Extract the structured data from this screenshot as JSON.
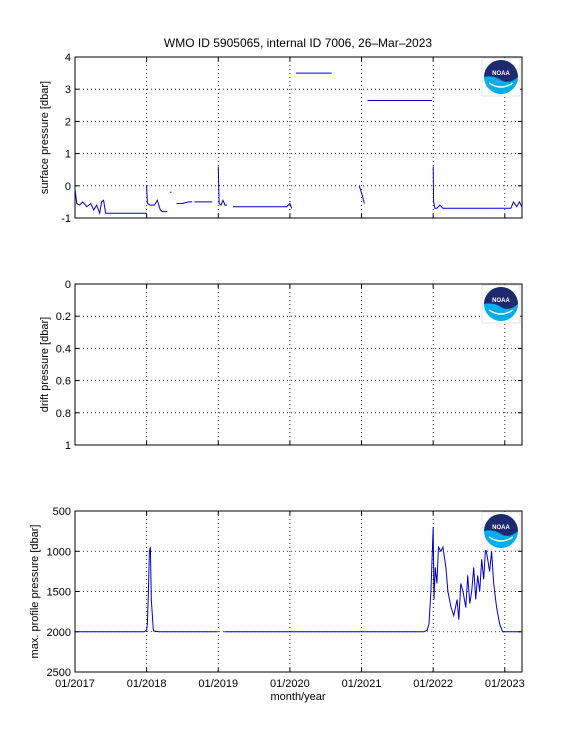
{
  "title": "WMO ID 5905065, internal ID 7006, 26–Mar–2023",
  "xlabel": "month/year",
  "x_ticks": [
    "01/2017",
    "01/2018",
    "01/2019",
    "01/2020",
    "01/2021",
    "01/2022",
    "01/2023"
  ],
  "logo_text": "NOAA",
  "colors": {
    "line": "#0000cc",
    "logo_navy": "#1f2a6e",
    "logo_cyan": "#00aeef"
  },
  "chart_data": [
    {
      "type": "line",
      "ylabel": "surface pressure [dbar]",
      "ylim": [
        -1,
        4
      ],
      "y_reversed": false,
      "y_ticks": [
        "-1",
        "0",
        "1",
        "2",
        "3",
        "4"
      ],
      "xlim": [
        "2017-01",
        "2023-04"
      ],
      "grid": true,
      "segments": [
        {
          "x": [
            "2017-01-01",
            "2017-01-10",
            "2017-01-25",
            "2017-02-10",
            "2017-03-01",
            "2017-03-20",
            "2017-04-05",
            "2017-04-20",
            "2017-05-05",
            "2017-05-15",
            "2017-05-25",
            "2017-06-05",
            "2017-06-20",
            "2017-07-05",
            "2017-07-20",
            "2017-08-10",
            "2017-09-01",
            "2017-10-01",
            "2017-11-01",
            "2017-12-01",
            "2017-12-28"
          ],
          "y": [
            -0.1,
            -0.55,
            -0.6,
            -0.5,
            -0.65,
            -0.55,
            -0.75,
            -0.6,
            -0.85,
            -0.5,
            -0.45,
            -0.85,
            -0.85,
            -0.85,
            -0.85,
            -0.85,
            -0.85,
            -0.85,
            -0.85,
            -0.85,
            -0.85
          ]
        },
        {
          "x": [
            "2018-01-01",
            "2018-01-05",
            "2018-01-20",
            "2018-02-10",
            "2018-02-25",
            "2018-03-10",
            "2018-03-20",
            "2018-04-05",
            "2018-04-15"
          ],
          "y": [
            0.0,
            -0.55,
            -0.6,
            -0.6,
            -0.45,
            -0.75,
            -0.8,
            -0.8,
            -0.8
          ]
        },
        {
          "x": [
            "2018-04-28",
            "2018-05-06"
          ],
          "y": [
            -0.2,
            -0.2
          ]
        },
        {
          "x": [
            "2018-06-01",
            "2018-07-01",
            "2018-08-01",
            "2018-08-20"
          ],
          "y": [
            -0.55,
            -0.55,
            -0.5,
            -0.5
          ]
        },
        {
          "x": [
            "2018-09-01",
            "2018-10-01",
            "2018-11-01",
            "2018-12-01"
          ],
          "y": [
            -0.5,
            -0.5,
            -0.5,
            -0.5
          ]
        },
        {
          "x": [
            "2019-01-01",
            "2019-01-05",
            "2019-01-15",
            "2019-01-25",
            "2019-02-05",
            "2019-02-15"
          ],
          "y": [
            0.6,
            -0.55,
            -0.6,
            -0.45,
            -0.6,
            -0.6
          ]
        },
        {
          "x": [
            "2019-03-15",
            "2019-05-01",
            "2019-07-01",
            "2019-09-01",
            "2019-11-01",
            "2019-12-15",
            "2020-01-01",
            "2020-01-10"
          ],
          "y": [
            -0.65,
            -0.65,
            -0.65,
            -0.65,
            -0.65,
            -0.65,
            -0.55,
            -0.7
          ]
        },
        {
          "x": [
            "2020-02-01",
            "2020-05-01",
            "2020-08-01"
          ],
          "y": [
            3.5,
            3.5,
            3.5
          ]
        },
        {
          "x": [
            "2020-12-20",
            "2021-01-05",
            "2021-01-15"
          ],
          "y": [
            0.0,
            -0.3,
            -0.55
          ]
        },
        {
          "x": [
            "2021-02-01",
            "2021-06-01",
            "2021-09-01",
            "2021-12-25"
          ],
          "y": [
            2.65,
            2.65,
            2.65,
            2.65
          ]
        },
        {
          "x": [
            "2022-01-01",
            "2022-01-03",
            "2022-01-10",
            "2022-01-20",
            "2022-02-05",
            "2022-02-20",
            "2022-03-10",
            "2022-04-01",
            "2022-06-01",
            "2022-08-01",
            "2022-10-01",
            "2022-12-01",
            "2023-01-01",
            "2023-01-15",
            "2023-02-01",
            "2023-02-15",
            "2023-03-01",
            "2023-03-15",
            "2023-03-26"
          ],
          "y": [
            0.6,
            -0.5,
            -0.7,
            -0.7,
            -0.6,
            -0.7,
            -0.7,
            -0.7,
            -0.7,
            -0.7,
            -0.7,
            -0.7,
            -0.7,
            -0.7,
            -0.7,
            -0.5,
            -0.65,
            -0.5,
            -0.65
          ]
        }
      ]
    },
    {
      "type": "line",
      "ylabel": "drift pressure [dbar]",
      "ylim": [
        0,
        1
      ],
      "y_reversed": true,
      "y_ticks": [
        "0",
        "0.2",
        "0.4",
        "0.6",
        "0.8",
        "1"
      ],
      "xlim": [
        "2017-01",
        "2023-04"
      ],
      "grid": true,
      "segments": []
    },
    {
      "type": "line",
      "ylabel": "max. profile pressure [dbar]",
      "ylim": [
        500,
        2500
      ],
      "y_reversed": true,
      "y_ticks": [
        "500",
        "1000",
        "1500",
        "2000",
        "2500"
      ],
      "xlim": [
        "2017-01",
        "2023-04"
      ],
      "grid": true,
      "segments": [
        {
          "x": [
            "2017-01-01",
            "2017-04-01",
            "2017-07-01",
            "2017-10-01",
            "2017-12-20",
            "2018-01-01",
            "2018-01-05",
            "2018-01-10",
            "2018-01-15",
            "2018-01-20",
            "2018-01-25",
            "2018-02-05",
            "2018-03-01",
            "2018-05-01",
            "2018-08-01",
            "2018-10-01",
            "2018-12-01",
            "2018-12-28"
          ],
          "y": [
            2000,
            2000,
            2000,
            2000,
            2000,
            1980,
            1900,
            1500,
            1000,
            950,
            1600,
            1990,
            2000,
            2000,
            2000,
            2000,
            2000,
            2000
          ]
        },
        {
          "x": [
            "2019-02-01",
            "2019-05-01",
            "2019-09-01",
            "2020-01-01",
            "2020-05-01",
            "2020-09-01",
            "2021-01-01",
            "2021-05-01",
            "2021-09-01",
            "2021-11-15",
            "2021-12-01",
            "2021-12-10",
            "2021-12-20",
            "2022-01-01",
            "2022-01-05",
            "2022-01-12",
            "2022-01-20",
            "2022-01-28",
            "2022-02-10",
            "2022-02-20",
            "2022-03-05",
            "2022-03-15",
            "2022-04-01",
            "2022-04-15",
            "2022-05-01",
            "2022-05-10",
            "2022-05-20",
            "2022-06-01",
            "2022-06-15",
            "2022-06-25",
            "2022-07-05",
            "2022-07-15",
            "2022-07-25",
            "2022-08-05",
            "2022-08-15",
            "2022-08-25",
            "2022-09-05",
            "2022-09-15",
            "2022-09-25",
            "2022-10-05",
            "2022-10-15",
            "2022-10-25",
            "2022-11-05",
            "2022-11-20",
            "2022-12-05",
            "2022-12-20",
            "2023-01-05",
            "2023-01-20",
            "2023-02-10",
            "2023-03-01",
            "2023-03-26"
          ],
          "y": [
            2000,
            2000,
            2000,
            2000,
            2000,
            2000,
            2000,
            2000,
            2000,
            2000,
            1980,
            1900,
            1500,
            700,
            1600,
            1200,
            1400,
            950,
            1000,
            950,
            1200,
            1500,
            1700,
            1800,
            1600,
            1850,
            1400,
            1500,
            1700,
            1300,
            1650,
            1500,
            1200,
            1600,
            1300,
            1500,
            1100,
            1350,
            950,
            1100,
            1250,
            1000,
            1400,
            1700,
            1900,
            2000,
            2000,
            2000,
            2000,
            2000,
            2000
          ]
        }
      ]
    }
  ]
}
